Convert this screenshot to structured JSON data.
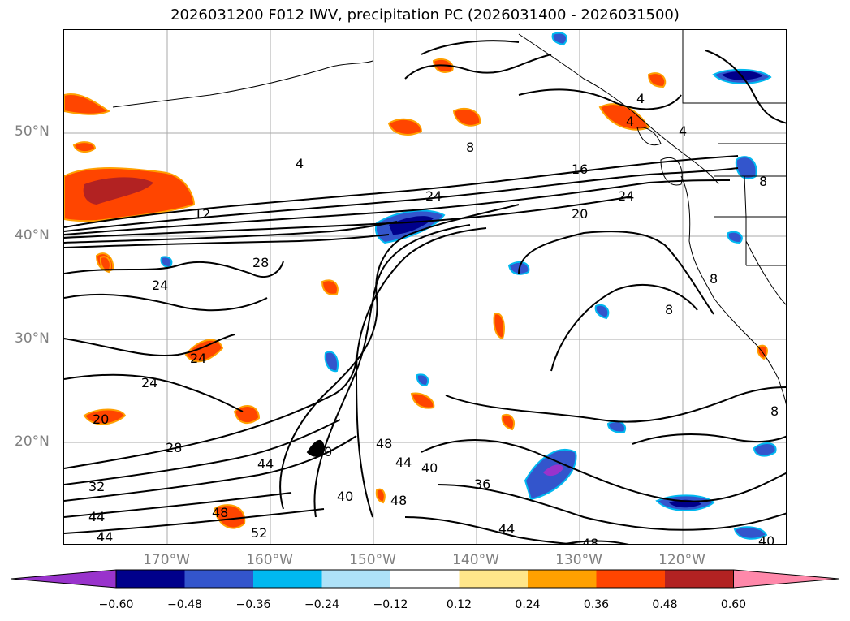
{
  "title": "2026031200 F012 IWV, precipitation PC (2026031400 - 2026031500)",
  "latitude_labels": [
    "50°N",
    "40°N",
    "30°N",
    "20°N"
  ],
  "longitude_labels": [
    "170°W",
    "160°W",
    "150°W",
    "140°W",
    "130°W",
    "120°W"
  ],
  "contour_labels": [
    "4",
    "8",
    "16",
    "24",
    "20",
    "12",
    "4",
    "28",
    "24",
    "24",
    "24",
    "20",
    "28",
    "32",
    "44",
    "44",
    "44",
    "40",
    "48",
    "44",
    "40",
    "40",
    "48",
    "36",
    "44",
    "48",
    "24",
    "8",
    "8",
    "8",
    "4",
    "4",
    "40",
    "52",
    "48",
    "8"
  ],
  "colorbar": {
    "ticks": [
      "−0.60",
      "−0.48",
      "−0.36",
      "−0.24",
      "−0.12",
      "0.12",
      "0.24",
      "0.36",
      "0.48",
      "0.60"
    ],
    "colors": [
      "#9933cc",
      "#00008b",
      "#3355cc",
      "#00b8f0",
      "#aee2f8",
      "#ffffff",
      "#ffe68a",
      "#ffa000",
      "#ff4500",
      "#b22222",
      "#ff88aa"
    ]
  }
}
